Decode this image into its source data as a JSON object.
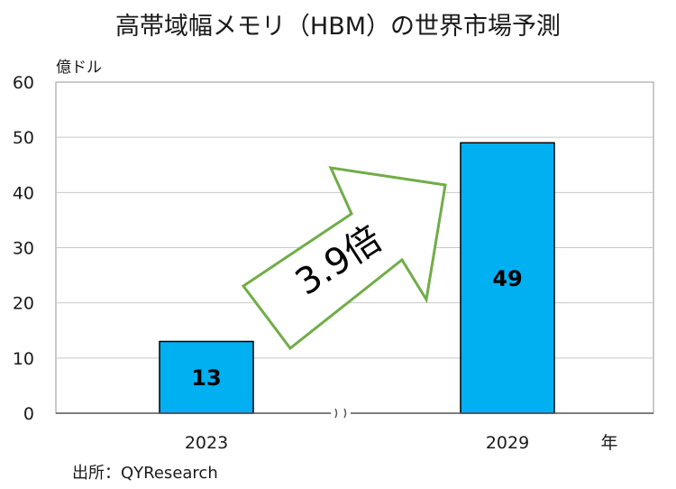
{
  "chart_data": {
    "type": "bar",
    "title": "高帯域幅メモリ（HBM）の世界市場予測",
    "ylabel": "億ドル",
    "xlabel": "年",
    "categories": [
      "2023",
      "2029"
    ],
    "values": [
      13,
      49
    ],
    "data_labels": [
      "13",
      "49"
    ],
    "ylim": [
      0,
      60
    ],
    "yticks": [
      "0",
      "10",
      "20",
      "30",
      "40",
      "50",
      "60"
    ],
    "grid": true,
    "axis_break": "≈ between categories",
    "annotation": "3.9倍",
    "source": "出所：QYResearch",
    "bar_color": "#00b0f0",
    "arrow_color": "#70ad47"
  }
}
